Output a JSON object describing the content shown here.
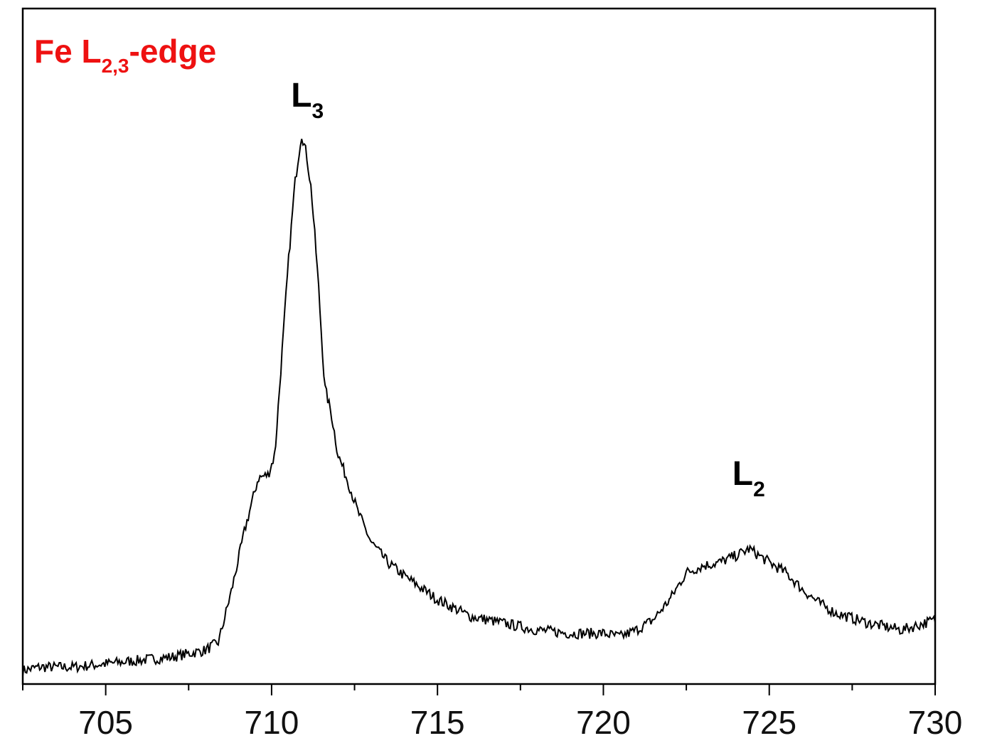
{
  "chart_data": {
    "type": "line",
    "title": {
      "main": "Fe L",
      "sub": "2,3",
      "suffix": "-edge"
    },
    "title_color": "#ee1111",
    "xlabel": "",
    "ylabel": "",
    "xlim": [
      702.5,
      730
    ],
    "ylim": [
      0,
      1
    ],
    "x_ticks_major": [
      "705",
      "710",
      "715",
      "720",
      "725",
      "730"
    ],
    "x_tick_values": [
      705,
      710,
      715,
      720,
      725,
      730
    ],
    "x_minor_step": 2.5,
    "y_axis_labels": false,
    "grid": false,
    "line_color": "#000000",
    "noise_amplitude": 0.008,
    "annotations": [
      {
        "main": "L",
        "sub": "3",
        "x": 711.1,
        "y": 0.855
      },
      {
        "main": "L",
        "sub": "2",
        "x": 724.4,
        "y": 0.295
      }
    ],
    "series": [
      {
        "x": [
          702.5,
          703.0,
          704.0,
          705.0,
          706.0,
          707.0,
          708.0,
          708.4,
          708.8,
          709.2,
          709.6,
          709.9,
          710.1,
          710.3,
          710.5,
          710.7,
          710.9,
          711.05,
          711.2,
          711.4,
          711.6,
          711.8,
          712.0,
          712.3,
          712.6,
          713.0,
          713.5,
          714.0,
          715.0,
          716.0,
          717.0,
          718.0,
          719.0,
          720.0,
          720.5,
          721.0,
          721.5,
          722.0,
          722.5,
          723.0,
          723.5,
          724.0,
          724.4,
          724.7,
          725.0,
          725.5,
          726.0,
          726.5,
          727.0,
          728.0,
          729.0,
          730.0
        ],
        "y": [
          0.02,
          0.025,
          0.025,
          0.03,
          0.035,
          0.04,
          0.05,
          0.062,
          0.14,
          0.23,
          0.305,
          0.31,
          0.34,
          0.48,
          0.62,
          0.74,
          0.815,
          0.785,
          0.73,
          0.6,
          0.44,
          0.4,
          0.34,
          0.3,
          0.255,
          0.21,
          0.18,
          0.16,
          0.125,
          0.1,
          0.09,
          0.08,
          0.075,
          0.075,
          0.07,
          0.08,
          0.095,
          0.125,
          0.165,
          0.175,
          0.18,
          0.19,
          0.2,
          0.19,
          0.18,
          0.165,
          0.14,
          0.12,
          0.105,
          0.09,
          0.08,
          0.095
        ]
      }
    ]
  }
}
